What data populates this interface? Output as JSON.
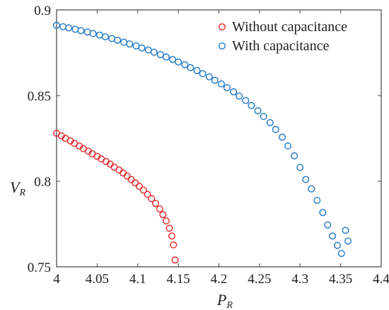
{
  "chart_data": {
    "type": "scatter",
    "xlabel": {
      "main": "P",
      "sub": "R"
    },
    "ylabel": {
      "main": "V",
      "sub": "R"
    },
    "xlim": [
      4,
      4.4
    ],
    "ylim": [
      0.75,
      0.9
    ],
    "xticks": [
      "4",
      "4.05",
      "4.1",
      "4.15",
      "4.2",
      "4.25",
      "4.3",
      "4.35",
      "4.4"
    ],
    "yticks": [
      "0.75",
      "0.8",
      "0.85",
      "0.9"
    ],
    "grid": false,
    "legend_position": "top-right",
    "series": [
      {
        "name": "Without capacitance",
        "color": "#e8262a",
        "points": [
          [
            4.0,
            0.828
          ],
          [
            4.006,
            0.8265
          ],
          [
            4.011,
            0.825
          ],
          [
            4.017,
            0.8235
          ],
          [
            4.022,
            0.8221
          ],
          [
            4.028,
            0.8205
          ],
          [
            4.033,
            0.819
          ],
          [
            4.039,
            0.8175
          ],
          [
            4.044,
            0.816
          ],
          [
            4.05,
            0.8145
          ],
          [
            4.055,
            0.813
          ],
          [
            4.061,
            0.8115
          ],
          [
            4.066,
            0.81
          ],
          [
            4.071,
            0.8082
          ],
          [
            4.077,
            0.8065
          ],
          [
            4.082,
            0.8048
          ],
          [
            4.087,
            0.803
          ],
          [
            4.092,
            0.801
          ],
          [
            4.097,
            0.799
          ],
          [
            4.102,
            0.797
          ],
          [
            4.107,
            0.7948
          ],
          [
            4.112,
            0.7923
          ],
          [
            4.117,
            0.7898
          ],
          [
            4.122,
            0.787
          ],
          [
            4.127,
            0.7838
          ],
          [
            4.131,
            0.7805
          ],
          [
            4.135,
            0.7768
          ],
          [
            4.139,
            0.7725
          ],
          [
            4.142,
            0.768
          ],
          [
            4.144,
            0.7628
          ],
          [
            4.146,
            0.754
          ]
        ]
      },
      {
        "name": "With capacitance",
        "color": "#1f78c8",
        "points": [
          [
            4.0,
            0.891
          ],
          [
            4.008,
            0.8902
          ],
          [
            4.015,
            0.8895
          ],
          [
            4.023,
            0.8887
          ],
          [
            4.03,
            0.8879
          ],
          [
            4.038,
            0.8871
          ],
          [
            4.045,
            0.8862
          ],
          [
            4.053,
            0.8853
          ],
          [
            4.06,
            0.8843
          ],
          [
            4.068,
            0.8833
          ],
          [
            4.075,
            0.8823
          ],
          [
            4.083,
            0.8812
          ],
          [
            4.09,
            0.8801
          ],
          [
            4.098,
            0.879
          ],
          [
            4.105,
            0.8778
          ],
          [
            4.113,
            0.8766
          ],
          [
            4.12,
            0.8753
          ],
          [
            4.128,
            0.8739
          ],
          [
            4.135,
            0.8725
          ],
          [
            4.143,
            0.8711
          ],
          [
            4.15,
            0.8696
          ],
          [
            4.158,
            0.868
          ],
          [
            4.165,
            0.8663
          ],
          [
            4.173,
            0.8646
          ],
          [
            4.18,
            0.8628
          ],
          [
            4.188,
            0.8609
          ],
          [
            4.195,
            0.8589
          ],
          [
            4.203,
            0.8568
          ],
          [
            4.21,
            0.8546
          ],
          [
            4.218,
            0.8522
          ],
          [
            4.225,
            0.8497
          ],
          [
            4.233,
            0.8471
          ],
          [
            4.24,
            0.8442
          ],
          [
            4.248,
            0.8411
          ],
          [
            4.255,
            0.8378
          ],
          [
            4.263,
            0.8342
          ],
          [
            4.27,
            0.8302
          ],
          [
            4.278,
            0.8257
          ],
          [
            4.285,
            0.8206
          ],
          [
            4.293,
            0.8148
          ],
          [
            4.3,
            0.808
          ],
          [
            4.307,
            0.801
          ],
          [
            4.314,
            0.7955
          ],
          [
            4.321,
            0.7888
          ],
          [
            4.328,
            0.7817
          ],
          [
            4.334,
            0.7745
          ],
          [
            4.34,
            0.768
          ],
          [
            4.346,
            0.7625
          ],
          [
            4.351,
            0.7578
          ],
          [
            4.356,
            0.7713
          ],
          [
            4.359,
            0.765
          ]
        ]
      }
    ]
  }
}
